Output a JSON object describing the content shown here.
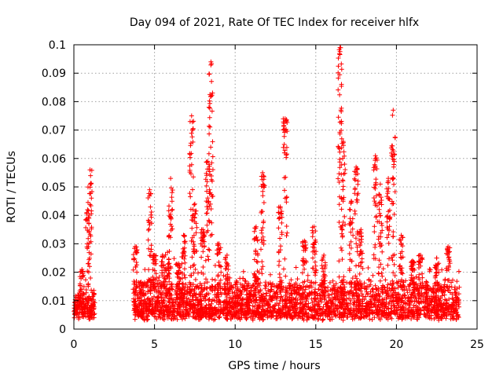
{
  "chart_data": {
    "type": "scatter",
    "title": "Day 094 of 2021, Rate Of TEC Index for receiver hlfx",
    "xlabel": "GPS time / hours",
    "ylabel": "ROTI / TECUs",
    "xlim": [
      0,
      25
    ],
    "ylim": [
      0,
      0.1
    ],
    "xticks": [
      "0",
      "5",
      "10",
      "15",
      "20",
      "25"
    ],
    "yticks": [
      "0",
      "0.01",
      "0.02",
      "0.03",
      "0.04",
      "0.05",
      "0.06",
      "0.07",
      "0.08",
      "0.09",
      "0.1"
    ],
    "grid": true,
    "marker": "plus",
    "series": [
      {
        "name": "ROTI",
        "color": "#ff0000",
        "segments": [
          {
            "x_start": 0.0,
            "x_end": 1.3,
            "baseline": 0.009,
            "spread": 0.008
          },
          {
            "x_start": 3.7,
            "x_end": 23.9,
            "baseline": 0.009,
            "spread": 0.012
          }
        ],
        "spikes": [
          {
            "x": 0.5,
            "y": 0.021
          },
          {
            "x": 0.85,
            "y": 0.042
          },
          {
            "x": 1.0,
            "y": 0.056
          },
          {
            "x": 3.8,
            "y": 0.029
          },
          {
            "x": 4.7,
            "y": 0.049
          },
          {
            "x": 5.0,
            "y": 0.026
          },
          {
            "x": 5.5,
            "y": 0.026
          },
          {
            "x": 5.8,
            "y": 0.027
          },
          {
            "x": 6.0,
            "y": 0.053
          },
          {
            "x": 6.5,
            "y": 0.023
          },
          {
            "x": 6.8,
            "y": 0.033
          },
          {
            "x": 7.3,
            "y": 0.075
          },
          {
            "x": 7.5,
            "y": 0.044
          },
          {
            "x": 8.0,
            "y": 0.035
          },
          {
            "x": 8.3,
            "y": 0.059
          },
          {
            "x": 8.5,
            "y": 0.094
          },
          {
            "x": 9.0,
            "y": 0.03
          },
          {
            "x": 9.5,
            "y": 0.026
          },
          {
            "x": 11.3,
            "y": 0.036
          },
          {
            "x": 11.7,
            "y": 0.055
          },
          {
            "x": 12.8,
            "y": 0.043
          },
          {
            "x": 13.1,
            "y": 0.074
          },
          {
            "x": 14.3,
            "y": 0.031
          },
          {
            "x": 14.9,
            "y": 0.036
          },
          {
            "x": 15.5,
            "y": 0.026
          },
          {
            "x": 16.5,
            "y": 0.099
          },
          {
            "x": 16.7,
            "y": 0.066
          },
          {
            "x": 17.2,
            "y": 0.045
          },
          {
            "x": 17.5,
            "y": 0.057
          },
          {
            "x": 17.8,
            "y": 0.035
          },
          {
            "x": 18.7,
            "y": 0.061
          },
          {
            "x": 19.0,
            "y": 0.051
          },
          {
            "x": 19.5,
            "y": 0.053
          },
          {
            "x": 19.8,
            "y": 0.077
          },
          {
            "x": 20.3,
            "y": 0.033
          },
          {
            "x": 21.0,
            "y": 0.024
          },
          {
            "x": 21.5,
            "y": 0.026
          },
          {
            "x": 22.5,
            "y": 0.025
          },
          {
            "x": 23.2,
            "y": 0.029
          }
        ]
      }
    ]
  }
}
